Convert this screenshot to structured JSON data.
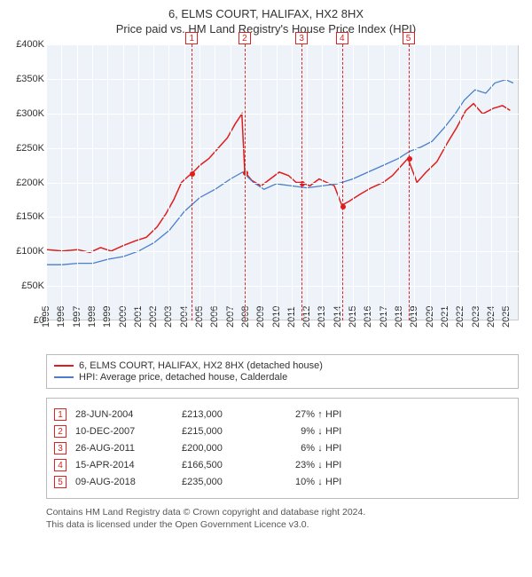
{
  "title_line1": "6, ELMS COURT, HALIFAX, HX2 8HX",
  "title_line2": "Price paid vs. HM Land Registry's House Price Index (HPI)",
  "chart": {
    "type": "line",
    "background_color": "#eef3f9",
    "grid_color": "#ffffff",
    "border_color": "#cccccc",
    "ylim": [
      0,
      400000
    ],
    "ytick_step": 50000,
    "ytick_labels": [
      "£0",
      "£50K",
      "£100K",
      "£150K",
      "£200K",
      "£250K",
      "£300K",
      "£350K",
      "£400K"
    ],
    "xlim": [
      1995,
      2025.8
    ],
    "xtick_step": 1,
    "xtick_labels": [
      "1995",
      "1996",
      "1997",
      "1998",
      "1999",
      "2000",
      "2001",
      "2002",
      "2003",
      "2004",
      "2005",
      "2006",
      "2007",
      "2008",
      "2009",
      "2010",
      "2011",
      "2012",
      "2013",
      "2014",
      "2015",
      "2016",
      "2017",
      "2018",
      "2019",
      "2020",
      "2021",
      "2022",
      "2023",
      "2024",
      "2025"
    ],
    "series": [
      {
        "id": "price_paid",
        "label": "6, ELMS COURT, HALIFAX, HX2 8HX (detached house)",
        "color": "#e01b1b",
        "line_width": 1.5,
        "data": [
          [
            1995.0,
            102000
          ],
          [
            1996.0,
            100000
          ],
          [
            1997.0,
            102000
          ],
          [
            1997.8,
            98000
          ],
          [
            1998.5,
            105000
          ],
          [
            1999.2,
            100000
          ],
          [
            2000.0,
            108000
          ],
          [
            2000.8,
            115000
          ],
          [
            2001.5,
            120000
          ],
          [
            2002.2,
            135000
          ],
          [
            2002.8,
            155000
          ],
          [
            2003.3,
            175000
          ],
          [
            2003.8,
            200000
          ],
          [
            2004.3,
            210000
          ],
          [
            2004.49,
            213000
          ],
          [
            2005.0,
            225000
          ],
          [
            2005.6,
            235000
          ],
          [
            2006.2,
            250000
          ],
          [
            2006.8,
            265000
          ],
          [
            2007.3,
            285000
          ],
          [
            2007.75,
            300000
          ],
          [
            2007.94,
            215000
          ],
          [
            2008.4,
            203000
          ],
          [
            2009.0,
            195000
          ],
          [
            2009.6,
            205000
          ],
          [
            2010.2,
            215000
          ],
          [
            2010.8,
            210000
          ],
          [
            2011.3,
            200000
          ],
          [
            2011.65,
            200000
          ],
          [
            2012.2,
            195000
          ],
          [
            2012.8,
            205000
          ],
          [
            2013.3,
            200000
          ],
          [
            2013.8,
            195000
          ],
          [
            2014.29,
            166500
          ],
          [
            2014.8,
            173000
          ],
          [
            2015.5,
            183000
          ],
          [
            2016.2,
            192000
          ],
          [
            2017.0,
            200000
          ],
          [
            2017.6,
            210000
          ],
          [
            2018.2,
            225000
          ],
          [
            2018.61,
            235000
          ],
          [
            2019.2,
            200000
          ],
          [
            2019.8,
            215000
          ],
          [
            2020.5,
            230000
          ],
          [
            2021.2,
            258000
          ],
          [
            2021.8,
            280000
          ],
          [
            2022.4,
            305000
          ],
          [
            2022.9,
            315000
          ],
          [
            2023.5,
            300000
          ],
          [
            2024.2,
            308000
          ],
          [
            2024.8,
            312000
          ],
          [
            2025.3,
            305000
          ]
        ]
      },
      {
        "id": "hpi",
        "label": "HPI: Average price, detached house, Calderdale",
        "color": "#4a7ecb",
        "line_width": 1.3,
        "data": [
          [
            1995.0,
            80000
          ],
          [
            1996.0,
            80000
          ],
          [
            1997.0,
            82000
          ],
          [
            1998.0,
            82000
          ],
          [
            1999.0,
            88000
          ],
          [
            2000.0,
            92000
          ],
          [
            2001.0,
            100000
          ],
          [
            2002.0,
            112000
          ],
          [
            2003.0,
            130000
          ],
          [
            2004.0,
            158000
          ],
          [
            2005.0,
            178000
          ],
          [
            2006.0,
            190000
          ],
          [
            2007.0,
            205000
          ],
          [
            2007.8,
            215000
          ],
          [
            2008.5,
            200000
          ],
          [
            2009.2,
            190000
          ],
          [
            2010.0,
            198000
          ],
          [
            2011.0,
            195000
          ],
          [
            2012.0,
            192000
          ],
          [
            2013.0,
            195000
          ],
          [
            2014.0,
            198000
          ],
          [
            2015.0,
            205000
          ],
          [
            2016.0,
            215000
          ],
          [
            2017.0,
            225000
          ],
          [
            2018.0,
            235000
          ],
          [
            2018.7,
            245000
          ],
          [
            2019.5,
            252000
          ],
          [
            2020.2,
            260000
          ],
          [
            2021.0,
            280000
          ],
          [
            2021.7,
            300000
          ],
          [
            2022.3,
            320000
          ],
          [
            2023.0,
            335000
          ],
          [
            2023.7,
            330000
          ],
          [
            2024.3,
            345000
          ],
          [
            2025.0,
            350000
          ],
          [
            2025.5,
            345000
          ]
        ]
      }
    ],
    "marker_lines": {
      "color": "#d22",
      "dash": "4,3",
      "box_top_offset": -18,
      "items": [
        {
          "n": "1",
          "x": 2004.49
        },
        {
          "n": "2",
          "x": 2007.94
        },
        {
          "n": "3",
          "x": 2011.65
        },
        {
          "n": "4",
          "x": 2014.29
        },
        {
          "n": "5",
          "x": 2018.61
        }
      ]
    },
    "sale_points": {
      "color": "#e01b1b",
      "radius": 3,
      "items": [
        {
          "x": 2004.49,
          "y": 213000
        },
        {
          "x": 2007.94,
          "y": 215000
        },
        {
          "x": 2011.65,
          "y": 200000
        },
        {
          "x": 2014.29,
          "y": 166500
        },
        {
          "x": 2018.61,
          "y": 235000
        }
      ]
    }
  },
  "transactions": {
    "hpi_label": "HPI",
    "rows": [
      {
        "n": "1",
        "date": "28-JUN-2004",
        "price": "£213,000",
        "pct": "27%",
        "dir": "↑"
      },
      {
        "n": "2",
        "date": "10-DEC-2007",
        "price": "£215,000",
        "pct": "9%",
        "dir": "↓"
      },
      {
        "n": "3",
        "date": "26-AUG-2011",
        "price": "£200,000",
        "pct": "6%",
        "dir": "↓"
      },
      {
        "n": "4",
        "date": "15-APR-2014",
        "price": "£166,500",
        "pct": "23%",
        "dir": "↓"
      },
      {
        "n": "5",
        "date": "09-AUG-2018",
        "price": "£235,000",
        "pct": "10%",
        "dir": "↓"
      }
    ]
  },
  "footer_line1": "Contains HM Land Registry data © Crown copyright and database right 2024.",
  "footer_line2": "This data is licensed under the Open Government Licence v3.0."
}
